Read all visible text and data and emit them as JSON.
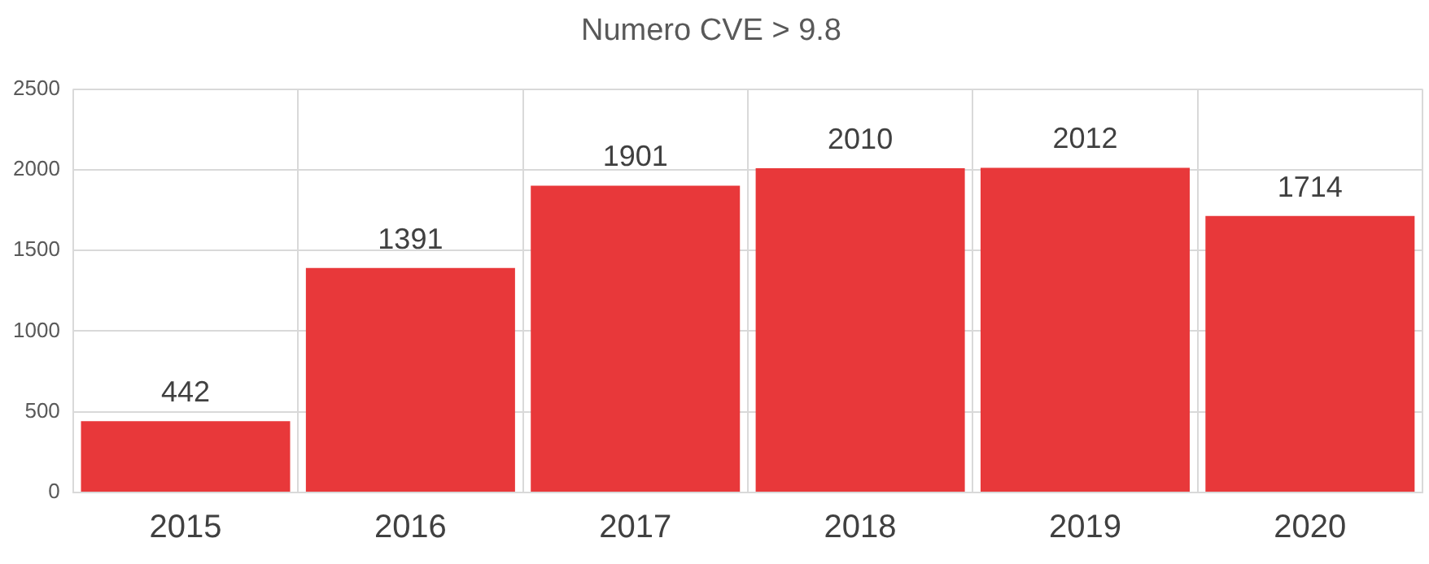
{
  "chart_data": {
    "type": "bar",
    "title": "Numero CVE > 9.8",
    "categories": [
      "2015",
      "2016",
      "2017",
      "2018",
      "2019",
      "2020"
    ],
    "values": [
      442,
      1391,
      1901,
      2010,
      2012,
      1714
    ],
    "color": "#e8383a",
    "ylim": [
      0,
      2500
    ],
    "yticks": [
      0,
      500,
      1000,
      1500,
      2000,
      2500
    ],
    "grid": true,
    "data_labels": true
  }
}
